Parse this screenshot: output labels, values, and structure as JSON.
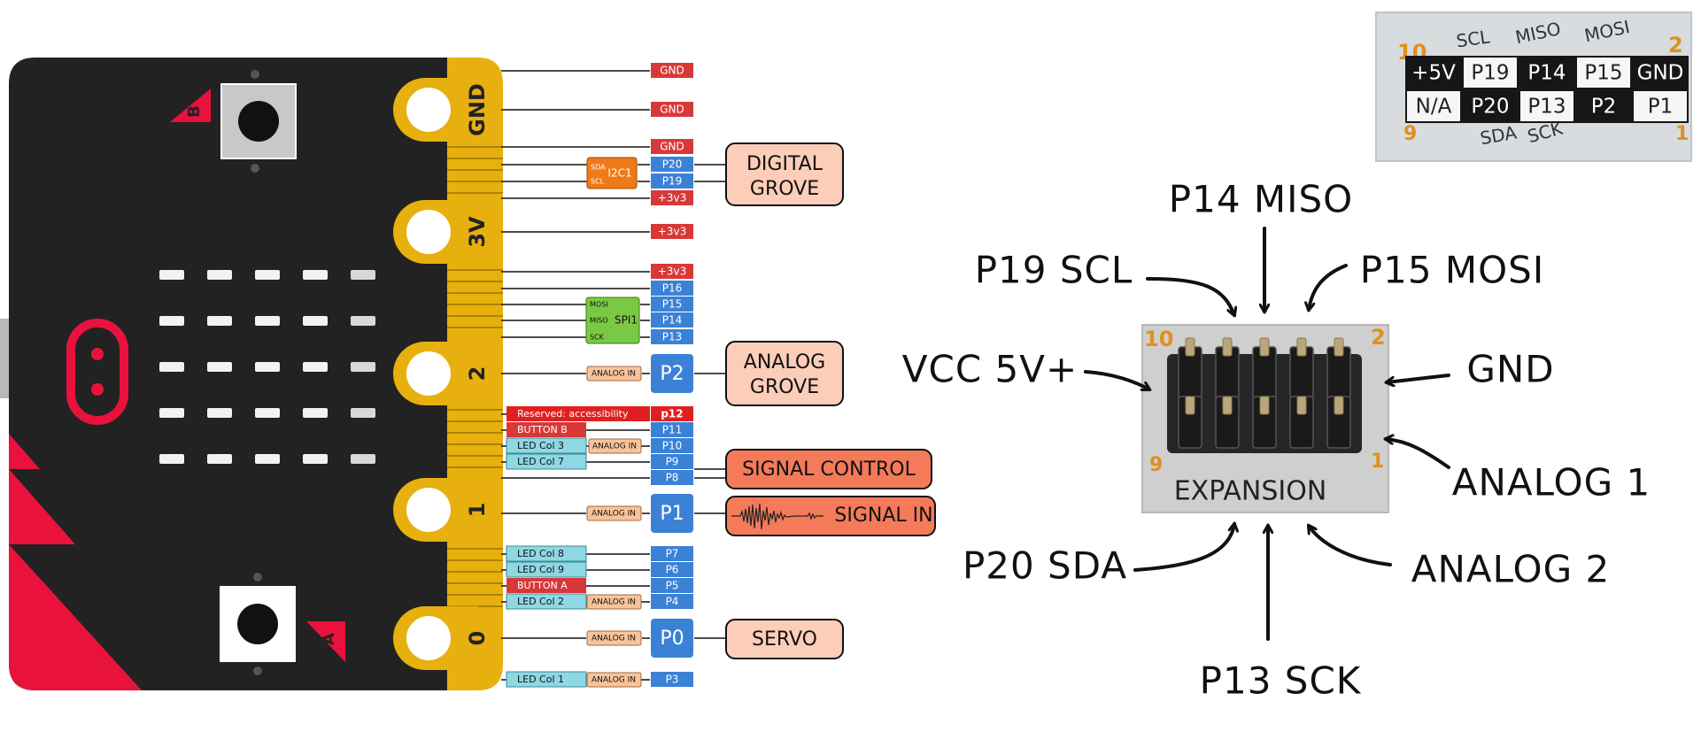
{
  "board": {
    "button_b_label": "B",
    "button_a_label": "A",
    "rings": [
      "GND",
      "3V",
      "2",
      "1",
      "0"
    ]
  },
  "pins": {
    "gnd1": "GND",
    "gnd2": "GND",
    "gnd3": "GND",
    "p20": "P20",
    "p19": "P19",
    "v33a": "+3v3",
    "v33b": "+3v3",
    "v33c": "+3v3",
    "p16": "P16",
    "p15": "P15",
    "p14": "P14",
    "p13": "P13",
    "p2": "P2",
    "p12": "p12",
    "p11": "P11",
    "p10": "P10",
    "p9": "P9",
    "p8": "P8",
    "p1": "P1",
    "p7": "P7",
    "p6": "P6",
    "p5": "P5",
    "p4": "P4",
    "p0": "P0",
    "p3": "P3"
  },
  "tags": {
    "i2c": "I2C1",
    "sda": "SDA",
    "scl": "SCL",
    "spi": "SPI1",
    "mosi": "MOSI",
    "miso": "MISO",
    "sck": "SCK",
    "analog_in": "ANALOG IN",
    "reserved": "Reserved: accessibility",
    "button_b": "BUTTON B",
    "button_a": "BUTTON A",
    "led_col3": "LED Col 3",
    "led_col7": "LED Col 7",
    "led_col8": "LED Col 8",
    "led_col9": "LED Col 9",
    "led_col2": "LED Col 2",
    "led_col1": "LED Col 1"
  },
  "boxes": {
    "digital_grove_1": "DIGITAL",
    "digital_grove_2": "GROVE",
    "analog_grove_1": "ANALOG",
    "analog_grove_2": "GROVE",
    "signal_control": "SIGNAL CONTROL",
    "signal_in": "SIGNAL IN",
    "servo": "SERVO"
  },
  "header_photo": {
    "corner_10": "10",
    "corner_2": "2",
    "corner_9": "9",
    "corner_1": "1",
    "top_labels": [
      "SCL",
      "MISO",
      "MOSI"
    ],
    "bottom_labels": [
      "SDA",
      "SCK"
    ],
    "row1": [
      "+5V",
      "P19",
      "P14",
      "P15",
      "GND"
    ],
    "row2": [
      "N/A",
      "P20",
      "P13",
      "P2",
      "P1"
    ]
  },
  "connector": {
    "corner_10": "10",
    "corner_2": "2",
    "corner_9": "9",
    "corner_1": "1",
    "label": "EXPANSION"
  },
  "annotations": {
    "p14_miso": "P14 MISO",
    "p19_scl": "P19 SCL",
    "p15_mosi": "P15 MOSI",
    "vcc": "VCC 5V+",
    "gnd": "GND",
    "analog1": "ANALOG 1",
    "p20_sda": "P20 SDA",
    "analog2": "ANALOG 2",
    "p13_sck": "P13 SCK"
  }
}
